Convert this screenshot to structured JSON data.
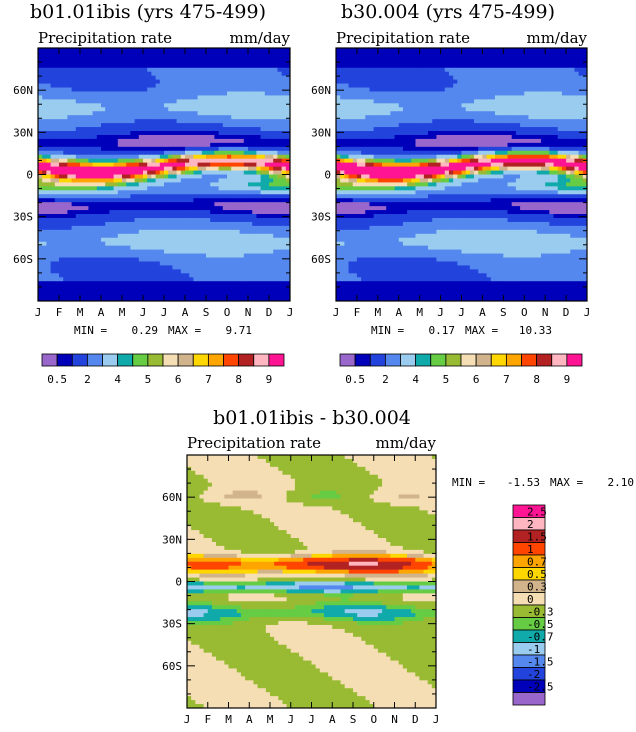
{
  "figure": {
    "type": "filled-contour map",
    "x_ticks": [
      "J",
      "F",
      "M",
      "A",
      "M",
      "J",
      "J",
      "A",
      "S",
      "O",
      "N",
      "D",
      "J"
    ],
    "y_ticks": [
      "60N",
      "30N",
      "0",
      "30S",
      "60S"
    ],
    "y_tick_lat": [
      60,
      30,
      0,
      -30,
      -60
    ],
    "y_range": [
      -90,
      90
    ]
  },
  "panels": [
    {
      "title": "b01.01ibis (yrs 475-499)",
      "variable": "Precipitation rate",
      "units": "mm/day",
      "min_label": "MIN =",
      "min_value": "0.29",
      "max_label": "MAX =",
      "max_value": "9.71"
    },
    {
      "title": "b30.004 (yrs 475-499)",
      "variable": "Precipitation rate",
      "units": "mm/day",
      "min_label": "MIN =",
      "min_value": "0.17",
      "max_label": "MAX =",
      "max_value": "10.33"
    },
    {
      "title": "b01.01ibis - b30.004",
      "variable": "Precipitation rate",
      "units": "mm/day",
      "min_label": "MIN =",
      "min_value": "-1.53",
      "max_label": "MAX =",
      "max_value": "2.10"
    }
  ],
  "colorbar_top": {
    "orientation": "horizontal",
    "colors": [
      "#9966cc",
      "#0000bb",
      "#2244dd",
      "#5588ee",
      "#99ccee",
      "#11aaaa",
      "#66cc44",
      "#99bb33",
      "#f5deb3",
      "#d2b48c",
      "#ffd700",
      "#ffa500",
      "#ff4500",
      "#b22222",
      "#ffb6c1",
      "#ff1493"
    ],
    "labels": [
      "0.5",
      "2",
      "4",
      "5",
      "6",
      "7",
      "8",
      "9"
    ]
  },
  "colorbar_diff": {
    "orientation": "vertical",
    "colors": [
      "#ff1493",
      "#ffb6c1",
      "#b22222",
      "#ff4500",
      "#ffa500",
      "#ffd700",
      "#d2b48c",
      "#f5deb3",
      "#99bb33",
      "#66cc44",
      "#11aaaa",
      "#99ccee",
      "#5588ee",
      "#2244dd",
      "#0000bb",
      "#9966cc"
    ],
    "labels": [
      "2.5",
      "2",
      "1.5",
      "1",
      "0.7",
      "0.5",
      "0.3",
      "0",
      "-0.3",
      "-0.5",
      "-0.7",
      "-1",
      "-1.5",
      "-2",
      "-2.5"
    ]
  },
  "chart_data": [
    {
      "type": "heatmap",
      "title": "b01.01ibis (yrs 475-499)",
      "variable": "Precipitation rate",
      "units": "mm/day",
      "x": [
        "J",
        "F",
        "M",
        "A",
        "M",
        "J",
        "J",
        "A",
        "S",
        "O",
        "N",
        "D",
        "J"
      ],
      "y_ticks": [
        "60N",
        "30N",
        "0",
        "30S",
        "60S"
      ],
      "min": 0.29,
      "max": 9.71,
      "contour_levels": [
        0.5,
        1,
        2,
        3,
        4,
        4.5,
        5,
        5.5,
        6,
        6.5,
        7,
        7.5,
        8,
        8.5,
        9
      ]
    },
    {
      "type": "heatmap",
      "title": "b30.004 (yrs 475-499)",
      "variable": "Precipitation rate",
      "units": "mm/day",
      "x": [
        "J",
        "F",
        "M",
        "A",
        "M",
        "J",
        "J",
        "A",
        "S",
        "O",
        "N",
        "D",
        "J"
      ],
      "y_ticks": [
        "60N",
        "30N",
        "0",
        "30S",
        "60S"
      ],
      "min": 0.17,
      "max": 10.33,
      "contour_levels": [
        0.5,
        1,
        2,
        3,
        4,
        4.5,
        5,
        5.5,
        6,
        6.5,
        7,
        7.5,
        8,
        8.5,
        9
      ]
    },
    {
      "type": "heatmap",
      "title": "b01.01ibis - b30.004",
      "variable": "Precipitation rate",
      "units": "mm/day",
      "x": [
        "J",
        "F",
        "M",
        "A",
        "M",
        "J",
        "J",
        "A",
        "S",
        "O",
        "N",
        "D",
        "J"
      ],
      "y_ticks": [
        "60N",
        "30N",
        "0",
        "30S",
        "60S"
      ],
      "min": -1.53,
      "max": 2.1,
      "contour_levels": [
        -2.5,
        -2,
        -1.5,
        -1,
        -0.7,
        -0.5,
        -0.3,
        0,
        0.3,
        0.5,
        0.7,
        1,
        1.5,
        2,
        2.5
      ]
    }
  ]
}
